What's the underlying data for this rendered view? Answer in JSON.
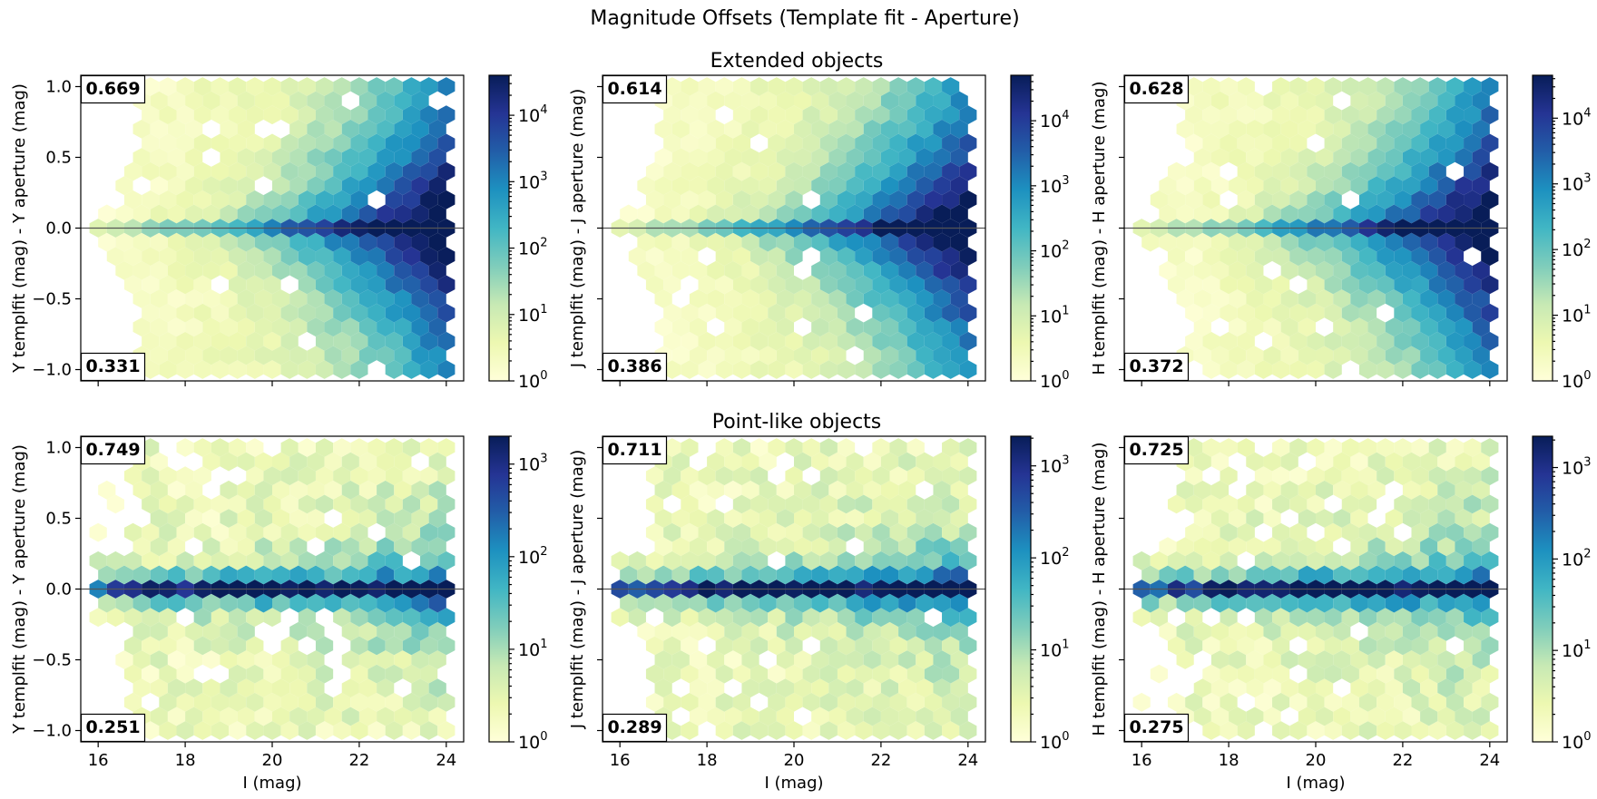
{
  "figure": {
    "suptitle": "Magnitude Offsets (Template fit - Aperture)",
    "row_titles": [
      "Extended objects",
      "Point-like objects"
    ]
  },
  "colormap": {
    "name": "YlGnBu",
    "stops": [
      "#ffffd9",
      "#edf8b1",
      "#c7e9b4",
      "#7fcdbb",
      "#41b6c4",
      "#1d91c0",
      "#225ea8",
      "#253494",
      "#081d58"
    ]
  },
  "chart_data": [
    {
      "type": "heatmap",
      "subtype": "hexbin",
      "row": "Extended objects",
      "band": "Y",
      "xlabel": "I (mag)",
      "ylabel": "Y templfit (mag) - Y aperture (mag)",
      "xlim": [
        15.6,
        24.4
      ],
      "ylim": [
        -1.08,
        1.08
      ],
      "xticks": [
        16,
        18,
        20,
        22,
        24
      ],
      "yticks": [
        -1.0,
        -0.5,
        0.0,
        0.5,
        1.0
      ],
      "x_range": [
        16,
        24
      ],
      "y_range": [
        -1,
        1
      ],
      "color_scale": "log",
      "clim": [
        1,
        40000
      ],
      "colorbar_ticks": [
        {
          "value": 1,
          "label": "10",
          "exp": "0"
        },
        {
          "value": 10,
          "label": "10",
          "exp": "1"
        },
        {
          "value": 100,
          "label": "10",
          "exp": "2"
        },
        {
          "value": 1000,
          "label": "10",
          "exp": "3"
        },
        {
          "value": 10000,
          "label": "10",
          "exp": "4"
        }
      ],
      "frac_above": "0.669",
      "frac_below": "0.331",
      "reference_line_y": 0.0
    },
    {
      "type": "heatmap",
      "subtype": "hexbin",
      "row": "Extended objects",
      "band": "J",
      "xlabel": "I (mag)",
      "ylabel": "J templfit (mag) - J aperture (mag)",
      "xlim": [
        15.6,
        24.4
      ],
      "ylim": [
        -1.08,
        1.08
      ],
      "xticks": [
        16,
        18,
        20,
        22,
        24
      ],
      "yticks": [
        -1.0,
        -0.5,
        0.0,
        0.5,
        1.0
      ],
      "x_range": [
        16,
        24
      ],
      "y_range": [
        -1,
        1
      ],
      "color_scale": "log",
      "clim": [
        1,
        50000
      ],
      "colorbar_ticks": [
        {
          "value": 1,
          "label": "10",
          "exp": "0"
        },
        {
          "value": 10,
          "label": "10",
          "exp": "1"
        },
        {
          "value": 100,
          "label": "10",
          "exp": "2"
        },
        {
          "value": 1000,
          "label": "10",
          "exp": "3"
        },
        {
          "value": 10000,
          "label": "10",
          "exp": "4"
        }
      ],
      "frac_above": "0.614",
      "frac_below": "0.386",
      "reference_line_y": 0.0
    },
    {
      "type": "heatmap",
      "subtype": "hexbin",
      "row": "Extended objects",
      "band": "H",
      "xlabel": "I (mag)",
      "ylabel": "H templfit (mag) - H aperture (mag)",
      "xlim": [
        15.6,
        24.4
      ],
      "ylim": [
        -1.08,
        1.08
      ],
      "xticks": [
        16,
        18,
        20,
        22,
        24
      ],
      "yticks": [
        -1.0,
        -0.5,
        0.0,
        0.5,
        1.0
      ],
      "x_range": [
        16,
        24
      ],
      "y_range": [
        -1,
        1
      ],
      "color_scale": "log",
      "clim": [
        1,
        45000
      ],
      "colorbar_ticks": [
        {
          "value": 1,
          "label": "10",
          "exp": "0"
        },
        {
          "value": 10,
          "label": "10",
          "exp": "1"
        },
        {
          "value": 100,
          "label": "10",
          "exp": "2"
        },
        {
          "value": 1000,
          "label": "10",
          "exp": "3"
        },
        {
          "value": 10000,
          "label": "10",
          "exp": "4"
        }
      ],
      "frac_above": "0.628",
      "frac_below": "0.372",
      "reference_line_y": 0.0
    },
    {
      "type": "heatmap",
      "subtype": "hexbin",
      "row": "Point-like objects",
      "band": "Y",
      "xlabel": "I (mag)",
      "ylabel": "Y templfit (mag) - Y aperture (mag)",
      "xlim": [
        15.6,
        24.4
      ],
      "ylim": [
        -1.08,
        1.08
      ],
      "xticks": [
        16,
        18,
        20,
        22,
        24
      ],
      "yticks": [
        -1.0,
        -0.5,
        0.0,
        0.5,
        1.0
      ],
      "x_range": [
        16,
        24
      ],
      "y_range": [
        -1,
        1
      ],
      "color_scale": "log",
      "clim": [
        1,
        2000
      ],
      "colorbar_ticks": [
        {
          "value": 1,
          "label": "10",
          "exp": "0"
        },
        {
          "value": 10,
          "label": "10",
          "exp": "1"
        },
        {
          "value": 100,
          "label": "10",
          "exp": "2"
        },
        {
          "value": 1000,
          "label": "10",
          "exp": "3"
        }
      ],
      "frac_above": "0.749",
      "frac_below": "0.251",
      "reference_line_y": 0.0
    },
    {
      "type": "heatmap",
      "subtype": "hexbin",
      "row": "Point-like objects",
      "band": "J",
      "xlabel": "I (mag)",
      "ylabel": "J templfit (mag) - J aperture (mag)",
      "xlim": [
        15.6,
        24.4
      ],
      "ylim": [
        -1.08,
        1.08
      ],
      "xticks": [
        16,
        18,
        20,
        22,
        24
      ],
      "yticks": [
        -1.0,
        -0.5,
        0.0,
        0.5,
        1.0
      ],
      "x_range": [
        16,
        24
      ],
      "y_range": [
        -1,
        1
      ],
      "color_scale": "log",
      "clim": [
        1,
        2100
      ],
      "colorbar_ticks": [
        {
          "value": 1,
          "label": "10",
          "exp": "0"
        },
        {
          "value": 10,
          "label": "10",
          "exp": "1"
        },
        {
          "value": 100,
          "label": "10",
          "exp": "2"
        },
        {
          "value": 1000,
          "label": "10",
          "exp": "3"
        }
      ],
      "frac_above": "0.711",
      "frac_below": "0.289",
      "reference_line_y": 0.0
    },
    {
      "type": "heatmap",
      "subtype": "hexbin",
      "row": "Point-like objects",
      "band": "H",
      "xlabel": "I (mag)",
      "ylabel": "H templfit (mag) - H aperture (mag)",
      "xlim": [
        15.6,
        24.4
      ],
      "ylim": [
        -1.08,
        1.08
      ],
      "xticks": [
        16,
        18,
        20,
        22,
        24
      ],
      "yticks": [
        -1.0,
        -0.5,
        0.0,
        0.5,
        1.0
      ],
      "x_range": [
        16,
        24
      ],
      "y_range": [
        -1,
        1
      ],
      "color_scale": "log",
      "clim": [
        1,
        2200
      ],
      "colorbar_ticks": [
        {
          "value": 1,
          "label": "10",
          "exp": "0"
        },
        {
          "value": 10,
          "label": "10",
          "exp": "1"
        },
        {
          "value": 100,
          "label": "10",
          "exp": "2"
        },
        {
          "value": 1000,
          "label": "10",
          "exp": "3"
        }
      ],
      "frac_above": "0.725",
      "frac_below": "0.275",
      "reference_line_y": 0.0
    }
  ]
}
